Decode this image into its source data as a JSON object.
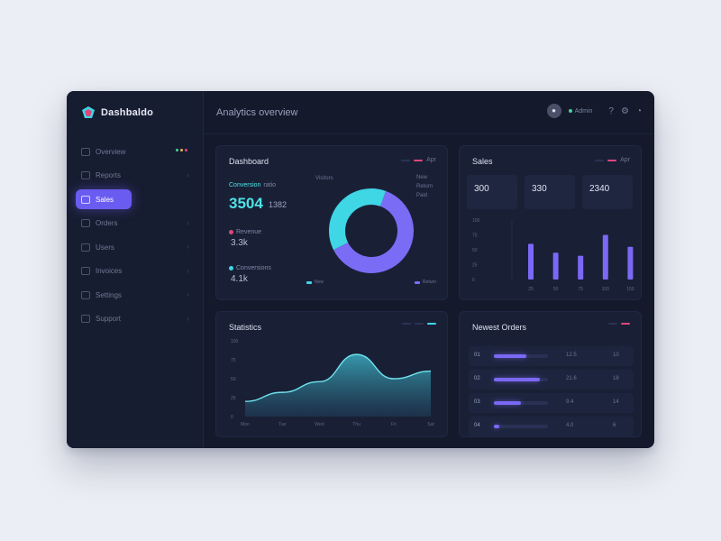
{
  "app": {
    "name": "Dashbaldo",
    "header_title": "Analytics overview",
    "user": "Admin",
    "accent": "#6a5cf0",
    "cyan": "#4ee3e6"
  },
  "sidebar": {
    "items": [
      {
        "label": "Overview",
        "active": false
      },
      {
        "label": "Reports",
        "active": false
      },
      {
        "label": "Sales",
        "active": true
      },
      {
        "label": "Orders",
        "active": false
      },
      {
        "label": "Users",
        "active": false
      },
      {
        "label": "Invoices",
        "active": false
      },
      {
        "label": "Settings",
        "active": false
      },
      {
        "label": "Support",
        "active": false
      }
    ]
  },
  "card_revenue": {
    "title": "Dashboard",
    "menu": "Apr",
    "metric_label": "Conversion",
    "metric_suffix": "ratio",
    "big_value": "3504",
    "big_sub": "1382",
    "mid1_label": "Revenue",
    "mid1_value": "3.3k",
    "mid2_label": "Conversions",
    "mid2_value": "4.1k",
    "donut_label": "Visitors",
    "donut_side": [
      "New",
      "Return",
      "Paid"
    ],
    "legend_a": "New",
    "legend_b": "Return",
    "chart_data": {
      "type": "pie",
      "labels": [
        "Return",
        "New"
      ],
      "values": [
        62,
        38
      ],
      "colors": [
        "#7b6cf5",
        "#3fd6e6"
      ]
    }
  },
  "card_stats": {
    "title": "Sales",
    "menu": "Apr",
    "stats": [
      "300",
      "330",
      "2340"
    ],
    "chart_data": {
      "type": "bar",
      "categories": [
        "25",
        "50",
        "75",
        "100",
        "150"
      ],
      "values": [
        60,
        45,
        40,
        75,
        55
      ],
      "ylim": [
        0,
        100
      ],
      "y_ticks": [
        "100",
        "75",
        "50",
        "25",
        "0"
      ],
      "color": "#7b68f5"
    }
  },
  "card_trend": {
    "title": "Statistics",
    "chart_data": {
      "type": "area",
      "x": [
        "Mon",
        "Tue",
        "Wed",
        "Thu",
        "Fri",
        "Sat"
      ],
      "values": [
        20,
        32,
        46,
        82,
        50,
        60
      ],
      "ylim": [
        0,
        100
      ],
      "y_ticks": [
        "100",
        "75",
        "50",
        "25",
        "0"
      ],
      "color": "#4cc9d9"
    }
  },
  "card_list": {
    "title": "Newest Orders",
    "rows": [
      {
        "label": "01",
        "fill": 0.6,
        "v1": "12.5",
        "v2": "10"
      },
      {
        "label": "02",
        "fill": 0.85,
        "v1": "21.6",
        "v2": "18"
      },
      {
        "label": "03",
        "fill": 0.5,
        "v1": "9.4",
        "v2": "14"
      },
      {
        "label": "04",
        "fill": 0.1,
        "v1": "4.0",
        "v2": "6"
      }
    ]
  }
}
